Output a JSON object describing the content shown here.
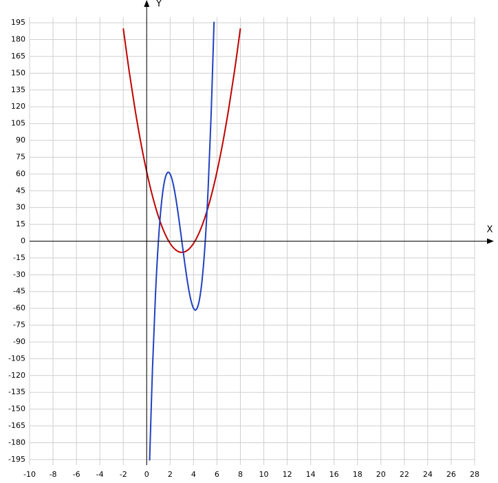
{
  "chart_data": {
    "type": "line",
    "xlabel": "X",
    "ylabel": "Y",
    "xlim": [
      -10,
      28
    ],
    "ylim": [
      -200,
      200
    ],
    "xticks": [
      -10,
      -8,
      -6,
      -4,
      -2,
      0,
      2,
      4,
      6,
      8,
      10,
      12,
      14,
      16,
      18,
      20,
      22,
      24,
      26,
      28
    ],
    "yticks": [
      -195,
      -180,
      -165,
      -150,
      -135,
      -120,
      -105,
      -90,
      -75,
      -60,
      -45,
      -30,
      -15,
      0,
      15,
      30,
      45,
      60,
      75,
      90,
      105,
      120,
      135,
      150,
      165,
      180,
      195
    ],
    "grid": true,
    "series": [
      {
        "color": "#c00000",
        "x": [
          -2,
          -1.5,
          -1,
          -0.5,
          0,
          0.5,
          1,
          1.5,
          2,
          2.5,
          3,
          3.5,
          4,
          4.5,
          5,
          5.5,
          6,
          6.5,
          7,
          7.5,
          8
        ],
        "values": [
          190,
          152,
          118,
          88,
          62,
          40,
          22,
          8,
          -2,
          -8,
          -10,
          -8,
          -2,
          8,
          22,
          40,
          62,
          88,
          118,
          152,
          190
        ]
      },
      {
        "color": "#2040c0",
        "x": [
          0.25,
          0.5,
          0.75,
          1,
          1.25,
          1.5,
          1.75,
          2,
          2.25,
          2.5,
          2.75,
          3,
          3.25,
          3.5,
          3.75,
          4,
          4.25,
          4.5,
          4.75,
          5,
          5.25,
          5.5,
          5.75
        ],
        "values": [
          -195.9,
          -112.5,
          -47.8,
          0,
          32.8,
          52.5,
          60.9,
          60,
          51.6,
          37.5,
          19.7,
          0,
          -19.7,
          -37.5,
          -51.6,
          -60,
          -60.9,
          -52.5,
          -32.8,
          0,
          47.8,
          112.5,
          195.9
        ]
      }
    ]
  }
}
